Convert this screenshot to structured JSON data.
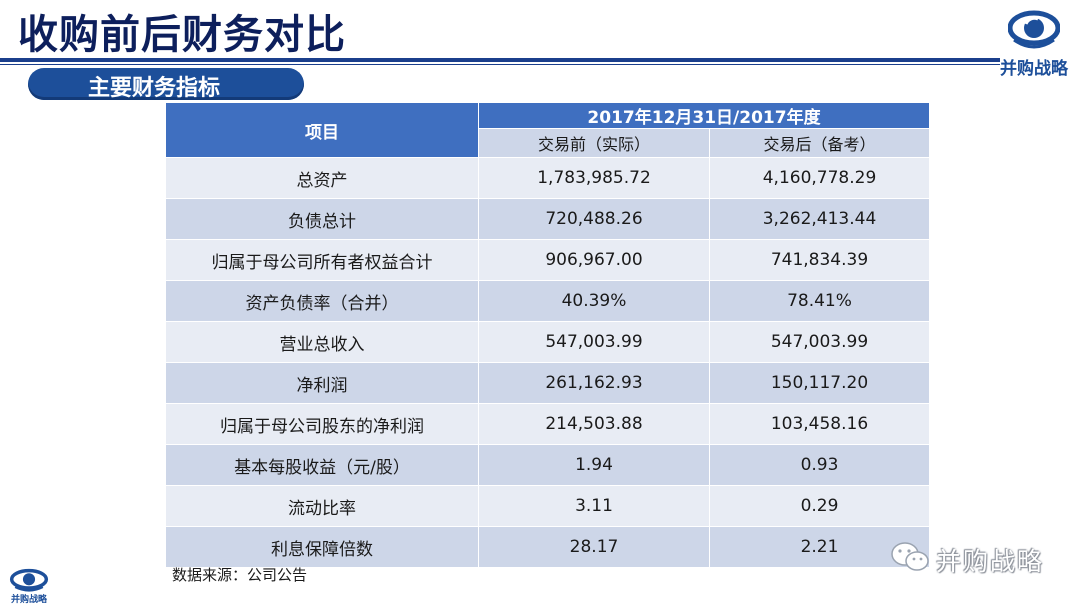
{
  "header": {
    "title": "收购前后财务对比",
    "subtitle": "主要财务指标"
  },
  "brand": {
    "logo_text": "并购战略",
    "watermark": "并购战略"
  },
  "table": {
    "col_item": "项目",
    "period": "2017年12月31日/2017年度",
    "col_before": "交易前（实际）",
    "col_after": "交易后（备考）",
    "rows": [
      {
        "item": "总资产",
        "before": "1,783,985.72",
        "after": "4,160,778.29"
      },
      {
        "item": "负债总计",
        "before": "720,488.26",
        "after": "3,262,413.44"
      },
      {
        "item": "归属于母公司所有者权益合计",
        "before": "906,967.00",
        "after": "741,834.39"
      },
      {
        "item": "资产负债率（合并）",
        "before": "40.39%",
        "after": "78.41%"
      },
      {
        "item": "营业总收入",
        "before": "547,003.99",
        "after": "547,003.99"
      },
      {
        "item": "净利润",
        "before": "261,162.93",
        "after": "150,117.20"
      },
      {
        "item": "归属于母公司股东的净利润",
        "before": "214,503.88",
        "after": "103,458.16"
      },
      {
        "item": "基本每股收益（元/股）",
        "before": "1.94",
        "after": "0.93"
      },
      {
        "item": "流动比率",
        "before": "3.11",
        "after": "0.29"
      },
      {
        "item": "利息保障倍数",
        "before": "28.17",
        "after": "2.21"
      }
    ]
  },
  "footer": {
    "source": "数据来源：公司公告"
  },
  "colors": {
    "title": "#0d1f5c",
    "accent": "#1d4f9a",
    "header_fill": "#3f6fc0",
    "row_dark": "#cdd6e8",
    "row_light": "#e8ecf4"
  }
}
